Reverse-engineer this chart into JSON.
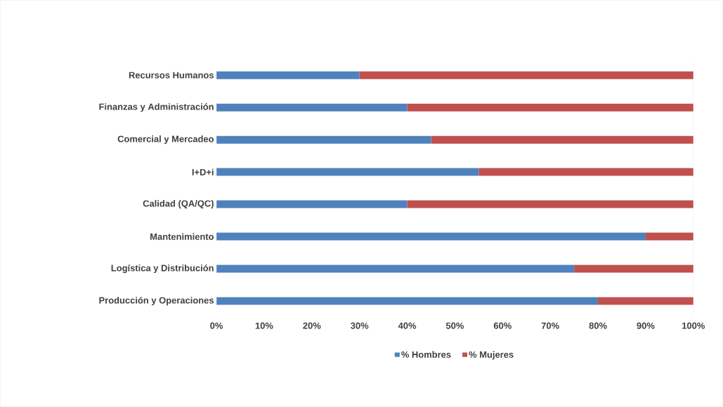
{
  "chart_data": {
    "type": "bar",
    "orientation": "horizontal",
    "stacked": true,
    "categories": [
      "Recursos Humanos",
      "Finanzas y Administración",
      "Comercial y Mercadeo",
      "I+D+i",
      "Calidad (QA/QC)",
      "Mantenimiento",
      "Logística y Distribución",
      "Producción y Operaciones"
    ],
    "series": [
      {
        "name": "% Hombres",
        "color": "#4f81bd",
        "values": [
          30,
          40,
          45,
          55,
          40,
          90,
          75,
          80
        ]
      },
      {
        "name": "% Mujeres",
        "color": "#c0504d",
        "values": [
          70,
          60,
          55,
          45,
          60,
          10,
          25,
          20
        ]
      }
    ],
    "xlim": [
      0,
      100
    ],
    "xticks": [
      {
        "value": 0,
        "label": "0%"
      },
      {
        "value": 10,
        "label": "10%"
      },
      {
        "value": 20,
        "label": "20%"
      },
      {
        "value": 30,
        "label": "30%"
      },
      {
        "value": 40,
        "label": "40%"
      },
      {
        "value": 50,
        "label": "50%"
      },
      {
        "value": 60,
        "label": "60%"
      },
      {
        "value": 70,
        "label": "70%"
      },
      {
        "value": 80,
        "label": "80%"
      },
      {
        "value": 90,
        "label": "90%"
      },
      {
        "value": 100,
        "label": "100%"
      }
    ],
    "legend": "bottom"
  }
}
